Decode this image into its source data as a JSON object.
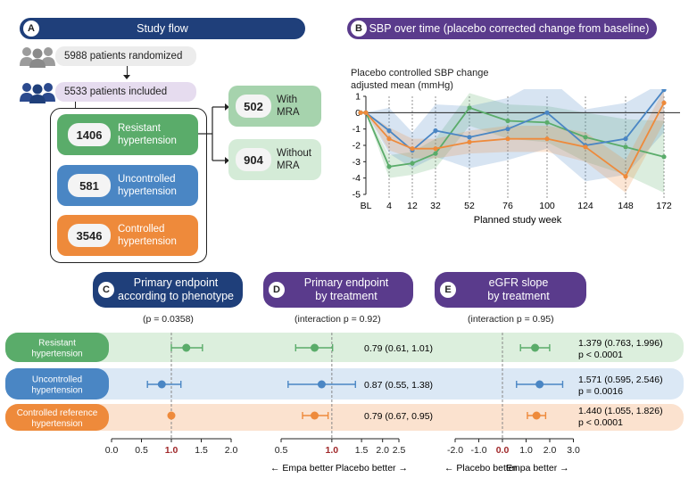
{
  "panels": {
    "a": {
      "letter": "A",
      "title": "Study flow"
    },
    "b": {
      "letter": "B",
      "title": "SBP over time (placebo corrected change from baseline)"
    },
    "c": {
      "letter": "C",
      "title_line1": "Primary endpoint",
      "title_line2": "according to phenotype"
    },
    "d": {
      "letter": "D",
      "title_line1": "Primary endpoint",
      "title_line2": "by treatment"
    },
    "e": {
      "letter": "E",
      "title_line1": "eGFR slope",
      "title_line2": "by treatment"
    }
  },
  "flow": {
    "randomized": "5988 patients randomized",
    "included": "5533 patients included",
    "resistant": {
      "n": "1406",
      "line1": "Resistant",
      "line2": "hypertension"
    },
    "uncontrolled": {
      "n": "581",
      "line1": "Uncontrolled",
      "line2": "hypertension"
    },
    "controlled": {
      "n": "3546",
      "line1": "Controlled",
      "line2": "hypertension"
    },
    "with_mra": {
      "n": "502",
      "line1": "With",
      "line2": "MRA"
    },
    "without_mra": {
      "n": "904",
      "line1": "Without",
      "line2": "MRA"
    }
  },
  "colors": {
    "green": "#5aac6a",
    "blue": "#4a86c4",
    "orange": "#ee8a3b",
    "navy": "#1f3f7a",
    "purple": "#5a3b8c",
    "darkred": "#a0282a"
  },
  "chart_data": [
    {
      "type": "line",
      "title": "Placebo controlled SBP change",
      "ylabel_line1": "Placebo controlled SBP change",
      "ylabel_line2": "adjusted mean (mmHg)",
      "xlabel": "Planned study week",
      "x_ticks": [
        "BL",
        "4",
        "12",
        "32",
        "52",
        "76",
        "100",
        "124",
        "148",
        "172"
      ],
      "x_tick_weeks": [
        0,
        4,
        12,
        32,
        52,
        76,
        100,
        124,
        148,
        172
      ],
      "y_ticks": [
        "1",
        "0",
        "-1",
        "-2",
        "-3",
        "-4",
        "-5"
      ],
      "ylim": [
        -5,
        1
      ],
      "series": [
        {
          "name": "Resistant hypertension",
          "color": "#5aac6a",
          "x": [
            -6,
            0,
            4,
            12,
            32,
            52,
            76,
            100,
            124,
            148,
            172
          ],
          "values": [
            0,
            0,
            -3.3,
            -3.1,
            -2.5,
            0.3,
            -0.5,
            -0.6,
            -1.5,
            -2.1,
            -2.7
          ],
          "lower": [
            0,
            0,
            -4.0,
            -3.8,
            -3.4,
            -0.8,
            -1.6,
            -1.8,
            -3.0,
            -3.8,
            -4.9
          ],
          "upper": [
            0,
            0,
            -2.6,
            -2.4,
            -1.6,
            1.2,
            0.5,
            0.4,
            0.0,
            -0.4,
            -0.5
          ]
        },
        {
          "name": "Uncontrolled hypertension",
          "color": "#4a86c4",
          "x": [
            -6,
            0,
            4,
            12,
            32,
            52,
            76,
            100,
            124,
            148,
            172
          ],
          "values": [
            0,
            0,
            -1.1,
            -2.3,
            -1.1,
            -1.5,
            -1.0,
            0.0,
            -2.0,
            -1.6,
            1.4
          ],
          "lower": [
            0,
            0,
            -2.5,
            -3.4,
            -2.7,
            -3.4,
            -2.9,
            -2.2,
            -4.2,
            -3.8,
            -1.2
          ],
          "upper": [
            0,
            0,
            0.3,
            -1.2,
            0.5,
            0.4,
            0.9,
            2.2,
            0.2,
            0.6,
            1.9
          ]
        },
        {
          "name": "Controlled hypertension",
          "color": "#ee8a3b",
          "x": [
            -6,
            0,
            4,
            12,
            32,
            52,
            76,
            100,
            124,
            148,
            172
          ],
          "values": [
            0,
            0,
            -1.6,
            -2.2,
            -2.2,
            -1.8,
            -1.6,
            -1.6,
            -2.1,
            -3.9,
            0.6
          ],
          "lower": [
            0,
            0,
            -2.3,
            -2.8,
            -2.8,
            -2.5,
            -2.4,
            -2.4,
            -3.0,
            -4.9,
            -0.6
          ],
          "upper": [
            0,
            0,
            -0.9,
            -1.6,
            -1.6,
            -1.1,
            -0.8,
            -0.8,
            -1.2,
            -2.9,
            1.4
          ]
        }
      ]
    },
    {
      "type": "forest",
      "title": "Primary endpoint according to phenotype",
      "note": "(p = 0.0358)",
      "x_ticks": [
        "0.0",
        "0.5",
        "1.0",
        "1.5",
        "2.0"
      ],
      "x_tick_values": [
        0.0,
        0.5,
        1.0,
        1.5,
        2.0
      ],
      "reference": 1.0,
      "rows": [
        {
          "name": "Resistant hypertension",
          "estimate": 1.25,
          "lower": 1.0,
          "upper": 1.52
        },
        {
          "name": "Uncontrolled hypertension",
          "estimate": 0.84,
          "lower": 0.6,
          "upper": 1.16
        },
        {
          "name": "Controlled reference hypertension",
          "estimate": 1.0
        }
      ]
    },
    {
      "type": "forest",
      "title": "Primary endpoint by treatment",
      "note": "(interaction p = 0.92)",
      "x_ticks": [
        "0.5",
        "1.0",
        "1.5",
        "2.0",
        "2.5"
      ],
      "x_tick_values": [
        0.5,
        1.0,
        1.5,
        2.0,
        2.5
      ],
      "reference": 1.0,
      "left_label": "Empa better",
      "right_label": "Placebo better",
      "rows": [
        {
          "estimate": 0.79,
          "lower": 0.61,
          "upper": 1.01,
          "text": "0.79 (0.61, 1.01)"
        },
        {
          "estimate": 0.87,
          "lower": 0.55,
          "upper": 1.38,
          "text": "0.87 (0.55, 1.38)"
        },
        {
          "estimate": 0.79,
          "lower": 0.67,
          "upper": 0.95,
          "text": "0.79 (0.67, 0.95)"
        }
      ]
    },
    {
      "type": "forest",
      "title": "eGFR slope by treatment",
      "note": "(interaction p = 0.95)",
      "x_ticks": [
        "-2.0",
        "-1.0",
        "0.0",
        "1.0",
        "2.0",
        "3.0"
      ],
      "x_tick_values": [
        -2.0,
        -1.0,
        0.0,
        1.0,
        2.0,
        3.0
      ],
      "reference": 0.0,
      "left_label": "Placebo better",
      "right_label": "Empa better",
      "rows": [
        {
          "estimate": 1.379,
          "lower": 0.763,
          "upper": 1.996,
          "text": "1.379 (0.763, 1.996)",
          "p": "p < 0.0001"
        },
        {
          "estimate": 1.571,
          "lower": 0.595,
          "upper": 2.546,
          "text": "1.571 (0.595, 2.546)",
          "p": "p = 0.0016"
        },
        {
          "estimate": 1.44,
          "lower": 1.055,
          "upper": 1.826,
          "text": "1.440 (1.055,  1.826)",
          "p": "p < 0.0001"
        }
      ]
    }
  ]
}
